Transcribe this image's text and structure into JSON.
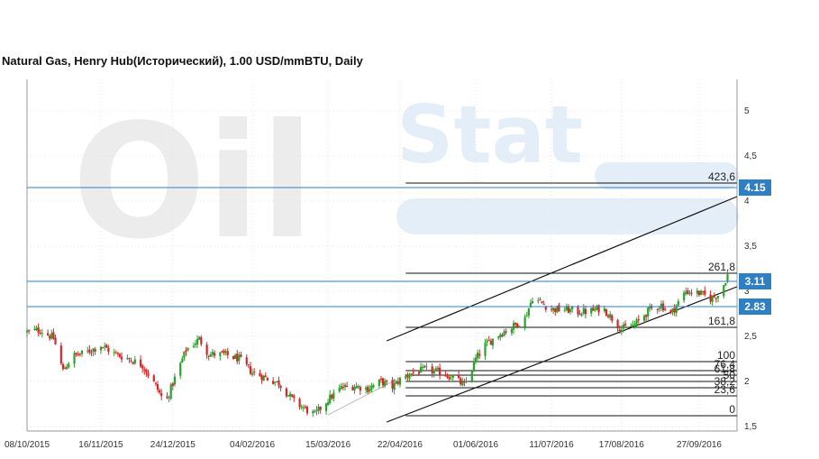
{
  "chart_data": {
    "type": "candlestick",
    "title": "Natural Gas, Henry Hub(Исторический), 1.00 USD/mmBTU, Daily",
    "y_ticks": [
      {
        "value": 5,
        "label": "5"
      },
      {
        "value": 4.5,
        "label": "4,5"
      },
      {
        "value": 4,
        "label": "4"
      },
      {
        "value": 3.5,
        "label": "3,5"
      },
      {
        "value": 3,
        "label": "3"
      },
      {
        "value": 2.5,
        "label": "2,5"
      },
      {
        "value": 2,
        "label": "2"
      },
      {
        "value": 1.5,
        "label": "1,5"
      }
    ],
    "ylim": [
      1.45,
      5.35
    ],
    "x_ticks": [
      "08/10/2015",
      "16/11/2015",
      "24/12/2015",
      "04/02/2016",
      "15/03/2016",
      "22/04/2016",
      "01/06/2016",
      "11/07/2016",
      "17/08/2016",
      "27/09/2016"
    ],
    "x_start": "2015-10-08",
    "x_end": "2016-10-17",
    "price_path": [
      [
        "2015-10-08",
        2.55
      ],
      [
        "2015-10-15",
        2.57
      ],
      [
        "2015-10-22",
        2.48
      ],
      [
        "2015-10-27",
        2.12
      ],
      [
        "2015-11-01",
        2.28
      ],
      [
        "2015-11-08",
        2.32
      ],
      [
        "2015-11-16",
        2.4
      ],
      [
        "2015-11-24",
        2.3
      ],
      [
        "2015-12-01",
        2.25
      ],
      [
        "2015-12-08",
        2.18
      ],
      [
        "2015-12-15",
        1.95
      ],
      [
        "2015-12-20",
        1.75
      ],
      [
        "2015-12-24",
        1.98
      ],
      [
        "2015-12-31",
        2.35
      ],
      [
        "2016-01-07",
        2.47
      ],
      [
        "2016-01-12",
        2.3
      ],
      [
        "2016-01-20",
        2.3
      ],
      [
        "2016-01-28",
        2.25
      ],
      [
        "2016-02-04",
        2.1
      ],
      [
        "2016-02-10",
        2.05
      ],
      [
        "2016-02-18",
        1.98
      ],
      [
        "2016-02-26",
        1.78
      ],
      [
        "2016-03-04",
        1.68
      ],
      [
        "2016-03-08",
        1.63
      ],
      [
        "2016-03-15",
        1.8
      ],
      [
        "2016-03-22",
        1.93
      ],
      [
        "2016-03-29",
        1.95
      ],
      [
        "2016-04-05",
        1.92
      ],
      [
        "2016-04-12",
        2.0
      ],
      [
        "2016-04-18",
        1.94
      ],
      [
        "2016-04-22",
        2.02
      ],
      [
        "2016-04-29",
        2.1
      ],
      [
        "2016-05-06",
        2.13
      ],
      [
        "2016-05-13",
        2.1
      ],
      [
        "2016-05-20",
        2.05
      ],
      [
        "2016-05-26",
        1.95
      ],
      [
        "2016-06-01",
        2.25
      ],
      [
        "2016-06-06",
        2.4
      ],
      [
        "2016-06-13",
        2.52
      ],
      [
        "2016-06-20",
        2.6
      ],
      [
        "2016-06-27",
        2.7
      ],
      [
        "2016-07-01",
        2.93
      ],
      [
        "2016-07-11",
        2.8
      ],
      [
        "2016-07-18",
        2.8
      ],
      [
        "2016-07-25",
        2.77
      ],
      [
        "2016-08-01",
        2.78
      ],
      [
        "2016-08-07",
        2.82
      ],
      [
        "2016-08-12",
        2.7
      ],
      [
        "2016-08-17",
        2.58
      ],
      [
        "2016-08-24",
        2.63
      ],
      [
        "2016-09-01",
        2.8
      ],
      [
        "2016-09-07",
        2.85
      ],
      [
        "2016-09-12",
        2.75
      ],
      [
        "2016-09-20",
        3.0
      ],
      [
        "2016-09-27",
        2.98
      ],
      [
        "2016-10-03",
        2.92
      ],
      [
        "2016-10-08",
        2.97
      ],
      [
        "2016-10-12",
        3.18
      ]
    ],
    "levels": [
      {
        "value": 4.15,
        "label": "4.15"
      },
      {
        "value": 3.11,
        "label": "3.11"
      },
      {
        "value": 2.83,
        "label": "2.83"
      }
    ],
    "fibonacci": [
      {
        "label": "423,6",
        "value": 4.2
      },
      {
        "label": "261,8",
        "value": 3.2
      },
      {
        "label": "161,8",
        "value": 2.6
      },
      {
        "label": "100",
        "value": 2.22
      },
      {
        "label": "76,4",
        "value": 2.12
      },
      {
        "label": "61,8",
        "value": 2.07
      },
      {
        "label": "50",
        "value": 2.0
      },
      {
        "label": "38,2",
        "value": 1.93
      },
      {
        "label": "23,6",
        "value": 1.84
      },
      {
        "label": "0",
        "value": 1.62
      }
    ],
    "channel": [
      {
        "from": [
          "2016-04-15",
          2.45
        ],
        "to": [
          "2016-10-17",
          4.05
        ]
      },
      {
        "from": [
          "2016-04-15",
          1.55
        ],
        "to": [
          "2016-10-17",
          3.05
        ]
      }
    ],
    "colors": {
      "up": "#2ca02c",
      "down": "#d62728",
      "level_line": "#2f7fc4",
      "badge": "#2f7fc4"
    },
    "grid": true
  },
  "watermark": {
    "brand_part1": "Oil",
    "brand_part2": "Stat"
  }
}
